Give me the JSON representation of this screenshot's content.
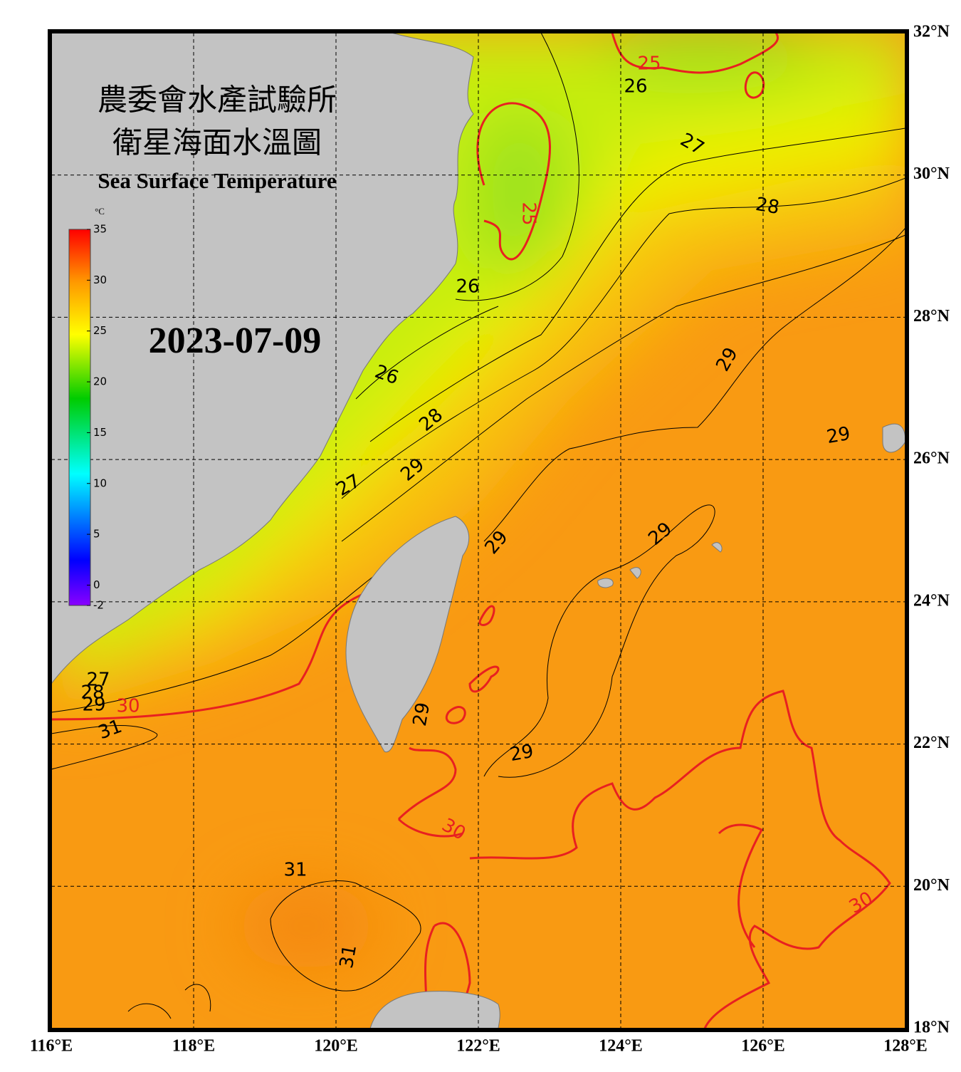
{
  "header": {
    "title_zh_1": "農委會水產試驗所",
    "title_zh_2": "衛星海面水溫圖",
    "title_en": "Sea Surface Temperature",
    "date": "2023-07-09"
  },
  "colorbar": {
    "unit": "°C",
    "range": [
      -2,
      35
    ],
    "ticks": [
      35,
      30,
      25,
      20,
      15,
      10,
      5,
      0,
      -2
    ]
  },
  "map": {
    "lon_range": [
      116,
      128
    ],
    "lat_range": [
      18,
      32
    ],
    "lon_ticks": [
      {
        "value": 116,
        "label": "116°E"
      },
      {
        "value": 118,
        "label": "118°E"
      },
      {
        "value": 120,
        "label": "120°E"
      },
      {
        "value": 122,
        "label": "122°E"
      },
      {
        "value": 124,
        "label": "124°E"
      },
      {
        "value": 126,
        "label": "126°E"
      },
      {
        "value": 128,
        "label": "128°E"
      }
    ],
    "lat_ticks": [
      {
        "value": 18,
        "label": "18°N"
      },
      {
        "value": 20,
        "label": "20°N"
      },
      {
        "value": 22,
        "label": "22°N"
      },
      {
        "value": 24,
        "label": "24°N"
      },
      {
        "value": 26,
        "label": "26°N"
      },
      {
        "value": 28,
        "label": "28°N"
      },
      {
        "value": 30,
        "label": "30°N"
      },
      {
        "value": 32,
        "label": "32°N"
      }
    ],
    "contour_labels": [
      "25",
      "26",
      "27",
      "28",
      "25",
      "26",
      "29",
      "29",
      "28",
      "26",
      "29",
      "27",
      "29",
      "29",
      "29",
      "29",
      "27",
      "28",
      "29",
      "30",
      "31",
      "30",
      "30",
      "31",
      "31"
    ]
  }
}
